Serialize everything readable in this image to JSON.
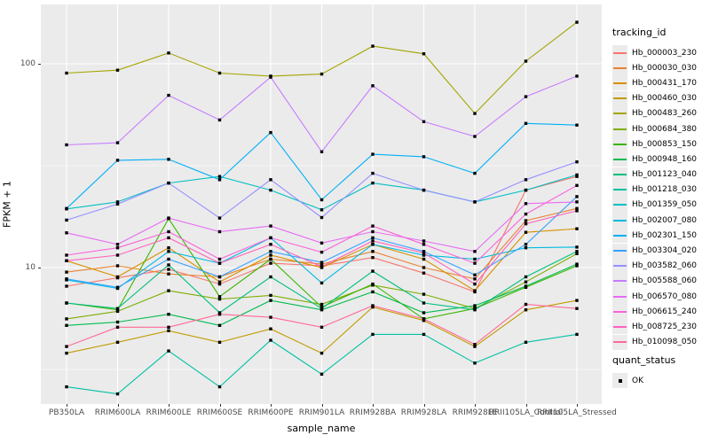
{
  "figure": {
    "background": "#FFFFFF",
    "panel_background": "#EBEBEB",
    "gridline_color": "#FFFFFF",
    "tick_color": "#333333",
    "axis_text_color": "#4D4D4D",
    "axis_title_color": "#000000",
    "point_color": "#000000"
  },
  "chart_data": {
    "type": "line",
    "title": "",
    "xlabel": "sample_name",
    "ylabel": "FPKM + 1",
    "y_scale": "log10",
    "y_ticks": [
      10,
      100
    ],
    "y_minor_ticks": [
      3.162,
      31.623
    ],
    "ylim": [
      2.14,
      196
    ],
    "grid": true,
    "legend_position": "right",
    "point_shape": "black-square",
    "categories": [
      "PB350LA",
      "RRIM600LA",
      "RRIM600LE",
      "RRIM600SE",
      "RRIM600PE",
      "RRIM901LA",
      "RRIM928BA",
      "RRIM928LA",
      "RRIM928LE",
      "RRII105LA_Control",
      "RRII105LA_Stressed"
    ],
    "series": [
      {
        "name": "Hb_000003_230",
        "color": "#F8766D",
        "values": [
          8.1,
          8.9,
          9.8,
          8.3,
          10.5,
          10.2,
          11.2,
          9.4,
          7.6,
          24.0,
          28.0
        ]
      },
      {
        "name": "Hb_000030_030",
        "color": "#EA8331",
        "values": [
          9.5,
          10.2,
          9.3,
          9.0,
          11.0,
          10.4,
          12.0,
          10.0,
          8.8,
          17.0,
          19.5
        ]
      },
      {
        "name": "Hb_000431_170",
        "color": "#D89000",
        "values": [
          10.8,
          9.0,
          12.5,
          8.5,
          11.5,
          10.0,
          13.0,
          11.0,
          7.7,
          14.9,
          15.5
        ]
      },
      {
        "name": "Hb_000460_030",
        "color": "#C09B00",
        "values": [
          3.8,
          4.3,
          4.9,
          4.3,
          5.0,
          3.8,
          6.4,
          5.5,
          4.1,
          6.2,
          6.9
        ]
      },
      {
        "name": "Hb_000483_260",
        "color": "#A3A500",
        "values": [
          90,
          93,
          113,
          90,
          87,
          89,
          122,
          112,
          57,
          103,
          160
        ]
      },
      {
        "name": "Hb_000684_380",
        "color": "#7CAE00",
        "values": [
          5.6,
          6.1,
          7.7,
          7.0,
          7.3,
          6.6,
          8.2,
          7.4,
          6.3,
          8.5,
          11.7
        ]
      },
      {
        "name": "Hb_000853_150",
        "color": "#39B600",
        "values": [
          6.7,
          6.2,
          17.4,
          7.2,
          11.0,
          6.4,
          8.3,
          5.6,
          6.3,
          8.0,
          10.2
        ]
      },
      {
        "name": "Hb_000948_160",
        "color": "#00BB4E",
        "values": [
          5.2,
          5.4,
          5.9,
          5.2,
          6.9,
          6.2,
          7.6,
          6.0,
          6.5,
          8.1,
          10.4
        ]
      },
      {
        "name": "Hb_001123_040",
        "color": "#00BF7D",
        "values": [
          6.7,
          6.3,
          10.3,
          6.0,
          9.0,
          6.3,
          9.6,
          6.7,
          6.2,
          9.0,
          12.0
        ]
      },
      {
        "name": "Hb_001218_030",
        "color": "#00C1A3",
        "values": [
          2.6,
          2.4,
          3.9,
          2.6,
          4.4,
          3.0,
          4.7,
          4.7,
          3.4,
          4.3,
          4.7
        ]
      },
      {
        "name": "Hb_001359_050",
        "color": "#00BFC4",
        "values": [
          19.4,
          21.0,
          26.0,
          28.0,
          24.0,
          19.2,
          26.0,
          24.0,
          21.0,
          24.0,
          28.5
        ]
      },
      {
        "name": "Hb_002007_080",
        "color": "#00BAE0",
        "values": [
          8.7,
          7.9,
          12.0,
          10.5,
          14.0,
          8.4,
          13.0,
          11.5,
          11.0,
          12.5,
          12.6
        ]
      },
      {
        "name": "Hb_002301_150",
        "color": "#00B0F6",
        "values": [
          19.5,
          33.6,
          34.0,
          27.0,
          46.0,
          21.5,
          36.0,
          35.0,
          29.0,
          51.0,
          50.0
        ]
      },
      {
        "name": "Hb_003304_020",
        "color": "#35A2FF",
        "values": [
          8.8,
          8.0,
          11.0,
          9.0,
          12.0,
          10.6,
          14.0,
          12.0,
          9.2,
          13.0,
          22.3
        ]
      },
      {
        "name": "Hb_003582_060",
        "color": "#9590FF",
        "values": [
          17.1,
          20.5,
          26.0,
          17.5,
          27.0,
          17.6,
          29.0,
          24.0,
          21.0,
          27.0,
          33.0
        ]
      },
      {
        "name": "Hb_005588_060",
        "color": "#C77CFF",
        "values": [
          40,
          41,
          70,
          53,
          86,
          37,
          78,
          52,
          44,
          69,
          87
        ]
      },
      {
        "name": "Hb_006570_080",
        "color": "#E76BF3",
        "values": [
          14.8,
          13.0,
          17.5,
          15.0,
          16.0,
          13.2,
          15.0,
          13.5,
          12.0,
          20.6,
          21.0
        ]
      },
      {
        "name": "Hb_006615_240",
        "color": "#FA62DB",
        "values": [
          11.5,
          12.5,
          15.0,
          11.0,
          14.0,
          11.9,
          16.0,
          13.0,
          10.5,
          18.3,
          25.3
        ]
      },
      {
        "name": "Hb_008725_230",
        "color": "#FF62BC",
        "values": [
          10.8,
          11.5,
          14.0,
          10.5,
          13.0,
          10.1,
          13.5,
          11.8,
          8.3,
          16.4,
          19.0
        ]
      },
      {
        "name": "Hb_010098_050",
        "color": "#FF6A98",
        "values": [
          4.1,
          5.1,
          5.1,
          5.9,
          5.7,
          5.1,
          6.5,
          5.6,
          4.2,
          6.6,
          6.3
        ]
      }
    ]
  },
  "legend": {
    "tracking_title": "tracking_id",
    "quant_title": "quant_status",
    "quant_items": [
      {
        "label": "OK"
      }
    ]
  }
}
